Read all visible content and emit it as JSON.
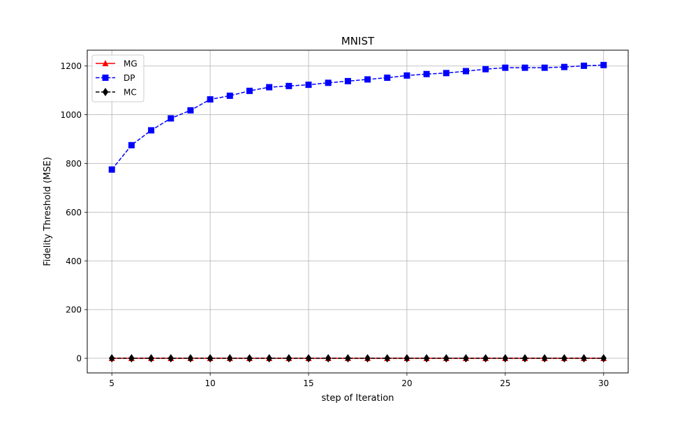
{
  "chart_data": {
    "type": "line",
    "title": "MNIST",
    "xlabel": "step of Iteration",
    "ylabel": "Fidelity Threshold (MSE)",
    "xlim": [
      3.75,
      31.25
    ],
    "ylim": [
      -60,
      1265
    ],
    "x_ticks": [
      5,
      10,
      15,
      20,
      25,
      30
    ],
    "y_ticks": [
      0,
      200,
      400,
      600,
      800,
      1000,
      1200
    ],
    "grid": true,
    "legend_position": "top-left",
    "x": [
      5,
      6,
      7,
      8,
      9,
      10,
      11,
      12,
      13,
      14,
      15,
      16,
      17,
      18,
      19,
      20,
      21,
      22,
      23,
      24,
      25,
      26,
      27,
      28,
      29,
      30
    ],
    "series": [
      {
        "name": "MG",
        "color": "#ff0000",
        "line_style": "solid",
        "marker": "triangle-up",
        "values": [
          0,
          0,
          0,
          0,
          0,
          0,
          0,
          0,
          0,
          0,
          0,
          0,
          0,
          0,
          0,
          0,
          0,
          0,
          0,
          0,
          0,
          0,
          0,
          0,
          0,
          0
        ]
      },
      {
        "name": "DP",
        "color": "#0000ff",
        "line_style": "dashed",
        "marker": "square",
        "values": [
          775,
          875,
          936,
          985,
          1018,
          1063,
          1078,
          1098,
          1113,
          1118,
          1123,
          1131,
          1138,
          1145,
          1152,
          1161,
          1167,
          1171,
          1179,
          1187,
          1193,
          1193,
          1193,
          1196,
          1201,
          1204
        ]
      },
      {
        "name": "MC",
        "color": "#000000",
        "line_style": "dashed",
        "marker": "diamond",
        "values": [
          0,
          0,
          0,
          0,
          0,
          0,
          0,
          0,
          0,
          0,
          0,
          0,
          0,
          0,
          0,
          0,
          0,
          0,
          0,
          0,
          0,
          0,
          0,
          0,
          0,
          0
        ]
      }
    ]
  }
}
